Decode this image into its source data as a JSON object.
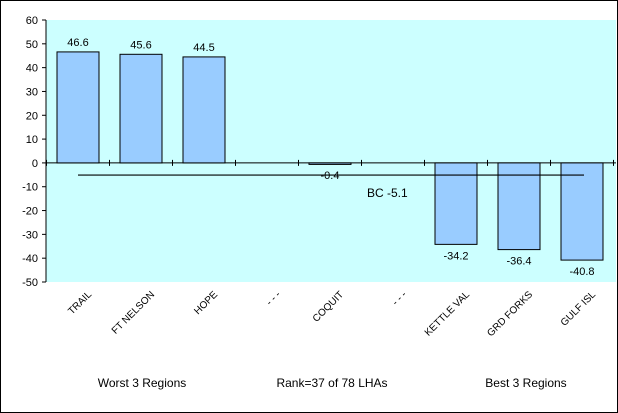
{
  "chart_data": {
    "type": "bar",
    "categories": [
      "TRAIL",
      "FT NELSON",
      "HOPE",
      "- - -",
      "COQUIT",
      "- - -",
      "KETTLE VAL",
      "GRD FORKS",
      "GULF ISL"
    ],
    "values": [
      46.6,
      45.6,
      44.5,
      null,
      -0.4,
      null,
      -34.2,
      -36.4,
      -40.8
    ],
    "value_labels": [
      "46.6",
      "45.6",
      "44.5",
      "",
      "-0.4",
      "",
      "-34.2",
      "-36.4",
      "-40.8"
    ],
    "ylim": [
      -50,
      60
    ],
    "yticks": [
      "60",
      "50",
      "40",
      "30",
      "20",
      "10",
      "0",
      "-10",
      "-20",
      "-30",
      "-40",
      "-50"
    ],
    "ytick_values": [
      60,
      50,
      40,
      30,
      20,
      10,
      0,
      -10,
      -20,
      -30,
      -40,
      -50
    ],
    "reference_line": {
      "label": "BC -5.1",
      "value": -5.1
    },
    "grid": false,
    "colors": {
      "plot_bg": "#ccffff",
      "bar_fill": "#99ccff",
      "bar_stroke": "#000000"
    }
  },
  "footer": {
    "left": "Worst 3 Regions",
    "center": "Rank=37 of 78 LHAs",
    "right": "Best 3 Regions"
  }
}
